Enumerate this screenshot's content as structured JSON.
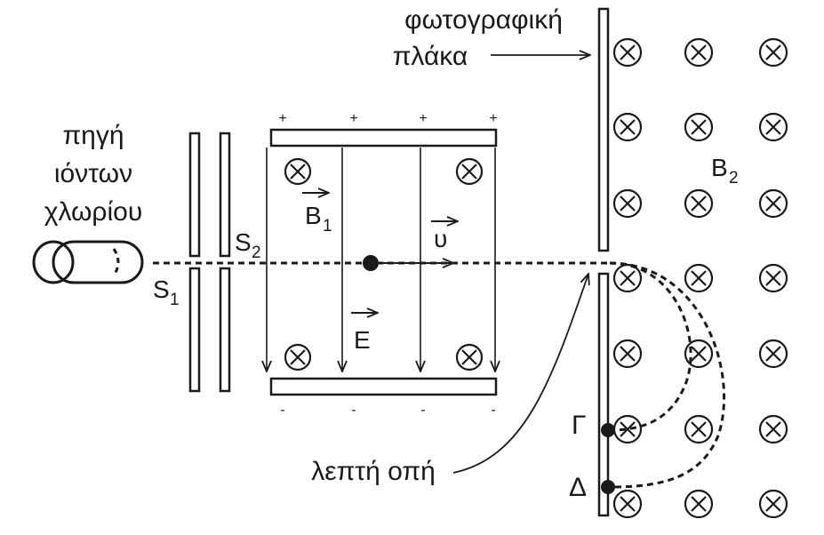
{
  "labels": {
    "source_line1": "πηγή",
    "source_line2": "ιόντων",
    "source_line3": "χλωρίου",
    "plate_line1": "φωτογραφική",
    "plate_line2": "πλάκα",
    "hole": "λεπτή οπή",
    "point_gamma": "Γ",
    "point_delta": "Δ"
  },
  "symbols": {
    "s1": "S",
    "s1_sub": "1",
    "s2": "S",
    "s2_sub": "2",
    "b1": "B",
    "b1_sub": "1",
    "b2": "B",
    "b2_sub": "2",
    "e": "E",
    "u": "υ"
  },
  "signs": {
    "plus": "+",
    "minus": "-"
  },
  "field_symbol": "⊗"
}
